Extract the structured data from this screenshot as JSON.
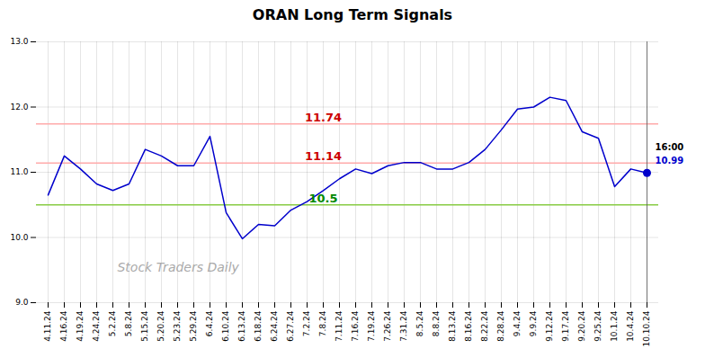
{
  "chart_data": {
    "type": "line",
    "title": "ORAN Long Term Signals",
    "categories": [
      "4.11.24",
      "4.16.24",
      "4.19.24",
      "4.24.24",
      "5.2.24",
      "5.8.24",
      "5.15.24",
      "5.20.24",
      "5.23.24",
      "5.29.24",
      "6.4.24",
      "6.10.24",
      "6.13.24",
      "6.18.24",
      "6.24.24",
      "6.27.24",
      "7.2.24",
      "7.8.24",
      "7.11.24",
      "7.16.24",
      "7.19.24",
      "7.26.24",
      "7.31.24",
      "8.5.24",
      "8.8.24",
      "8.13.24",
      "8.16.24",
      "8.22.24",
      "8.28.24",
      "9.4.24",
      "9.9.24",
      "9.12.24",
      "9.17.24",
      "9.20.24",
      "9.25.24",
      "10.1.24",
      "10.4.24",
      "10.10.24"
    ],
    "values": [
      10.65,
      11.25,
      11.05,
      10.82,
      10.72,
      10.82,
      11.35,
      11.25,
      11.1,
      11.1,
      11.55,
      10.38,
      9.98,
      10.2,
      10.18,
      10.42,
      10.55,
      10.72,
      10.9,
      11.05,
      10.98,
      11.1,
      11.15,
      11.15,
      11.05,
      11.05,
      11.15,
      11.35,
      11.65,
      11.97,
      12.0,
      12.15,
      12.1,
      11.62,
      11.52,
      10.78,
      11.05,
      10.99
    ],
    "color": "#0000cc",
    "ylim": [
      9,
      13
    ],
    "yticks": [
      9,
      10,
      11,
      12,
      13
    ],
    "grid": true,
    "hlines": [
      {
        "value": 11.74,
        "color": "#ffaaaa"
      },
      {
        "value": 11.14,
        "color": "#ffaaaa"
      },
      {
        "value": 10.5,
        "color": "#88cc44"
      }
    ],
    "annotations": [
      {
        "text": "11.74",
        "color": "#cc0000",
        "y": 11.74
      },
      {
        "text": "11.14",
        "color": "#cc0000",
        "y": 11.14
      },
      {
        "text": "10.5",
        "color": "#008800",
        "y": 10.5
      }
    ],
    "end_point": {
      "y": 10.99,
      "color": "#0000cc"
    },
    "vline": "10.10.24",
    "side_labels": [
      {
        "text": "16:00",
        "color": "#000000"
      },
      {
        "text": "10.99",
        "color": "#0000cc"
      }
    ],
    "watermark": {
      "text": "Stock Traders Daily",
      "color": "#aaaaaa"
    }
  }
}
